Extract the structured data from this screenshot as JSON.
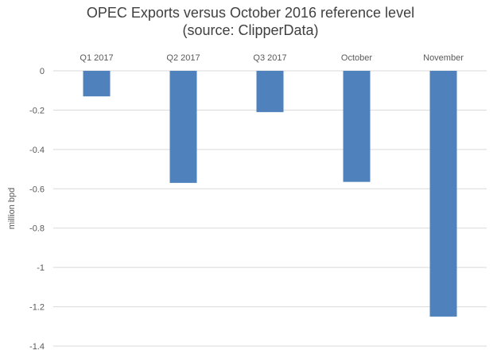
{
  "chart_data": {
    "type": "bar",
    "title_lines": [
      "OPEC Exports versus October 2016 reference level",
      "(source: ClipperData)"
    ],
    "xlabel": "",
    "ylabel": "million bpd",
    "categories": [
      "Q1 2017",
      "Q2 2017",
      "Q3 2017",
      "October",
      "November"
    ],
    "series": [
      {
        "values": [
          -0.13,
          -0.57,
          -0.21,
          -0.565,
          -1.25
        ]
      }
    ],
    "ylim": [
      -1.4,
      0
    ],
    "yticks": [
      0,
      -0.2,
      -0.4,
      -0.6,
      -0.8,
      -1,
      -1.2,
      -1.4
    ],
    "ytick_labels": [
      "0",
      "-0.2",
      "-0.4",
      "-0.6",
      "-0.8",
      "-1",
      "-1.2",
      "-1.4"
    ],
    "category_labels_position": "top",
    "grid": true,
    "legend": "none",
    "colors": {
      "bar": "#4f81bd",
      "grid": "#d9d9d9",
      "text": "#595959",
      "title": "#404040"
    }
  }
}
